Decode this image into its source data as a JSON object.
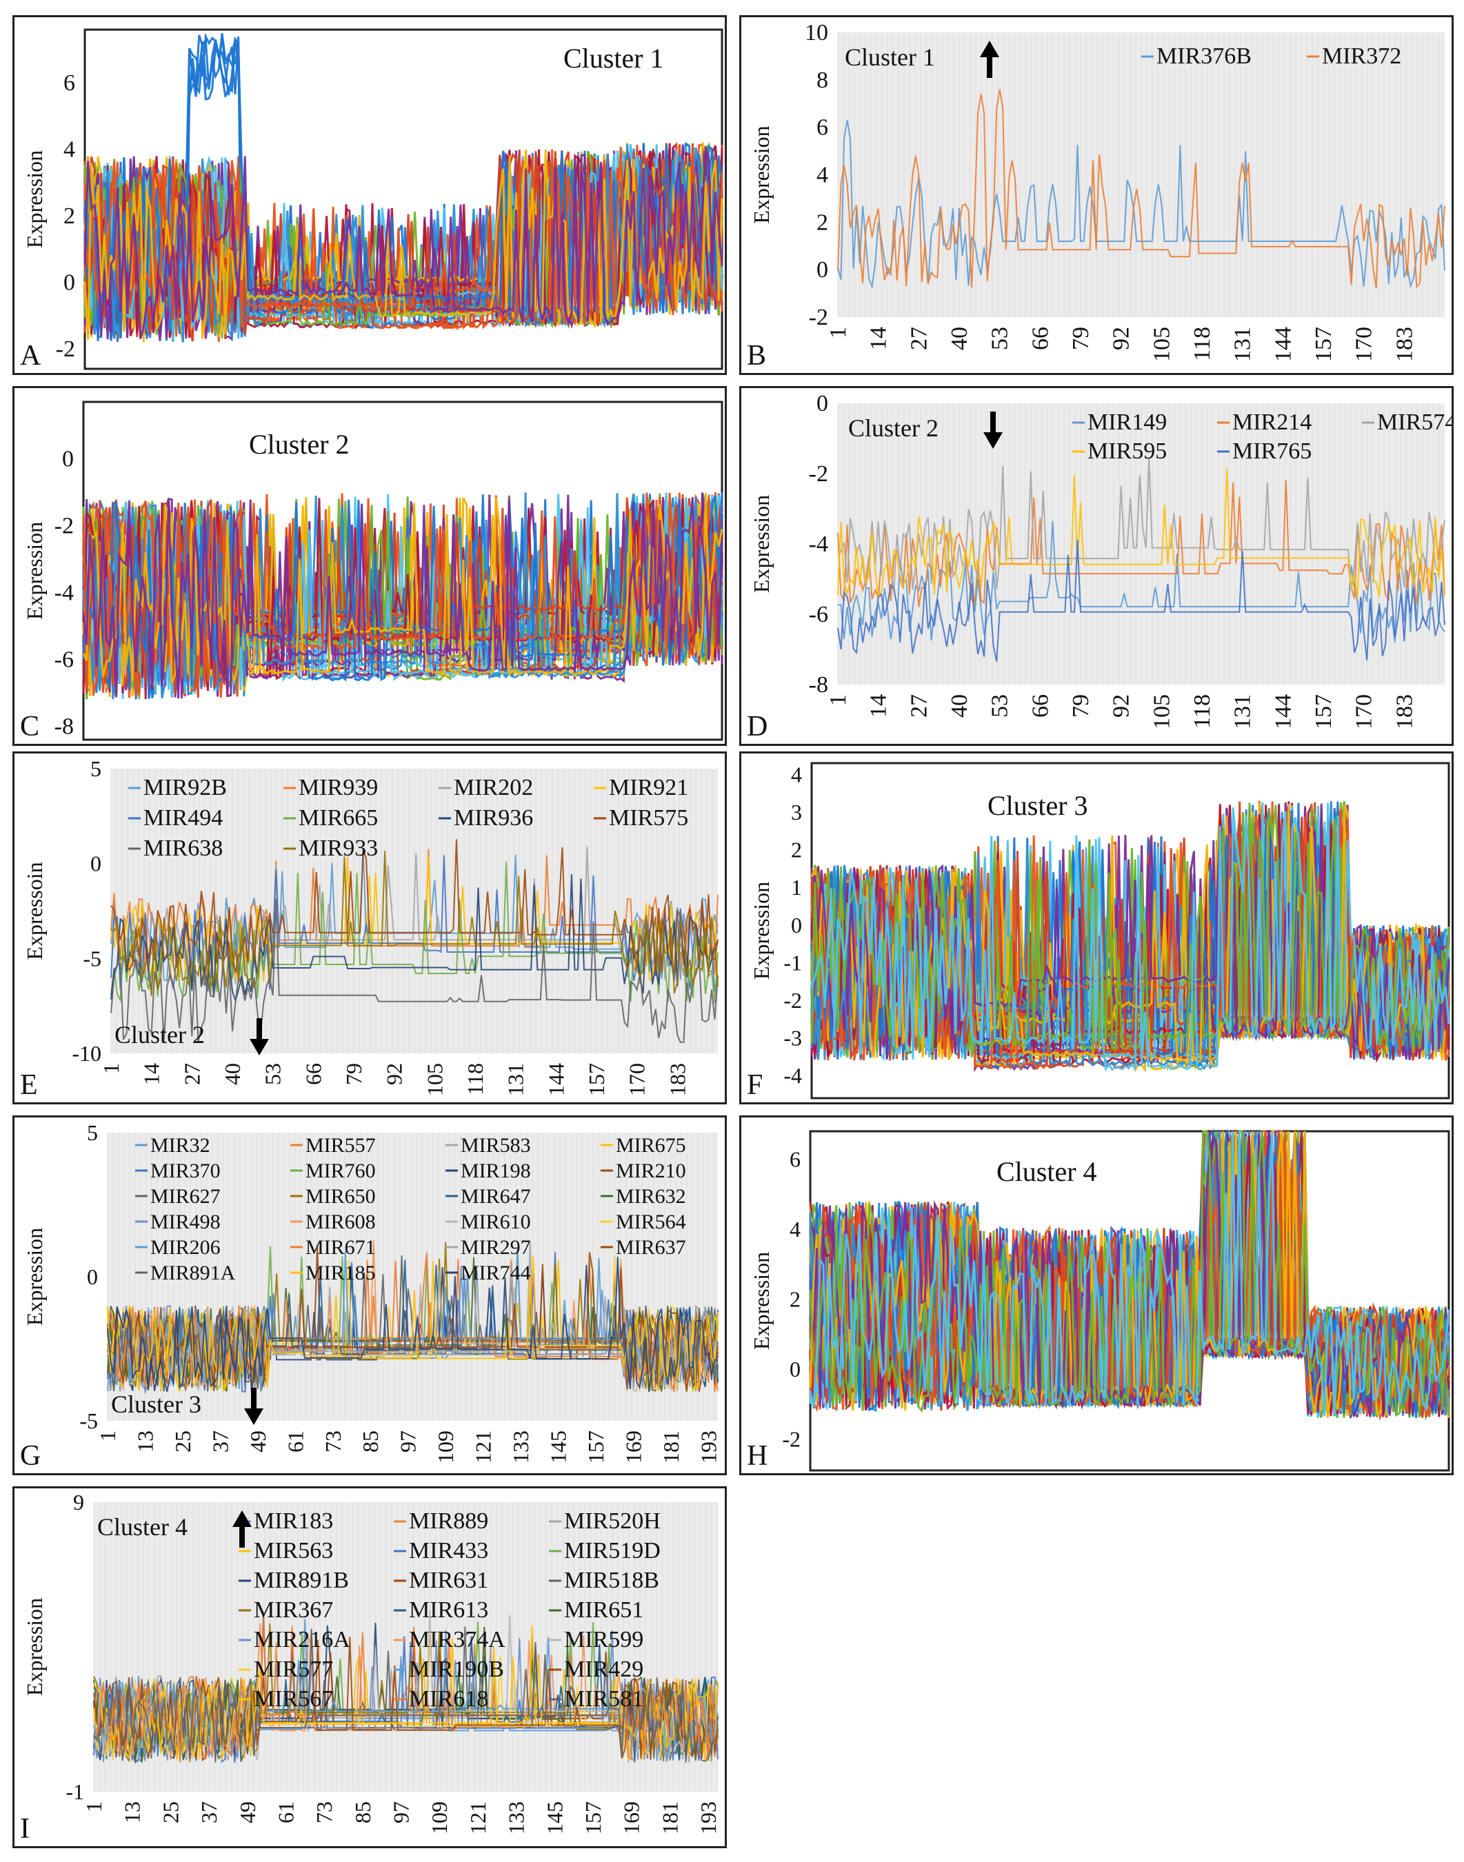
{
  "figure": {
    "axis_label": "Expression",
    "axis_label_typo": "Expressoin"
  },
  "chart_data": [
    {
      "panel": "A",
      "type": "line",
      "title": "Cluster 1",
      "ylabel": "Expression",
      "ylim": [
        -2.6,
        7.6
      ],
      "yticks": [
        "6",
        "4",
        "2",
        "0",
        "-2"
      ],
      "series_count": 40,
      "x_count": 196,
      "description_palette": [
        "#1f77d4",
        "#e8541e",
        "#f0b400",
        "#7a2f9a",
        "#6fb52c",
        "#4fc3f0",
        "#b0173d",
        "#2c8fd8",
        "#d8421c"
      ],
      "regimes": [
        {
          "x": [
            1,
            50
          ],
          "mean": 1.0,
          "amp": 2.8
        },
        {
          "x": [
            51,
            127
          ],
          "mean": -0.6,
          "amp": 1.2,
          "flat": true
        },
        {
          "x": [
            128,
            164
          ],
          "mean": 0.0,
          "amp": 2.5,
          "spiky": true
        },
        {
          "x": [
            165,
            196
          ],
          "mean": 1.6,
          "amp": 2.6
        }
      ],
      "highlight": {
        "x": [
          33,
          48
        ],
        "peak": 7.5
      }
    },
    {
      "panel": "B",
      "type": "line",
      "title": "Cluster 1",
      "arrow": "up",
      "ylabel": "Expression",
      "ylim": [
        -2,
        10
      ],
      "yticks": [
        "10",
        "8",
        "6",
        "4",
        "2",
        "0",
        "-2"
      ],
      "xticks": [
        "1",
        "14",
        "27",
        "40",
        "53",
        "66",
        "79",
        "92",
        "105",
        "118",
        "131",
        "144",
        "157",
        "170",
        "183"
      ],
      "series": [
        {
          "name": "MIR376B",
          "color": "#5b9bd5",
          "peaks": [
            [
              4,
              6.3
            ],
            [
              27,
              3.9
            ],
            [
              52,
              3.2
            ],
            [
              63,
              3.5
            ],
            [
              70,
              3.6
            ],
            [
              82,
              3.5
            ],
            [
              95,
              3.4
            ],
            [
              104,
              3.6
            ],
            [
              163,
              2.7
            ],
            [
              190,
              1.8
            ]
          ]
        },
        {
          "name": "MIR372",
          "color": "#ed7d31",
          "peaks": [
            [
              3,
              4.4
            ],
            [
              26,
              4.8
            ],
            [
              41,
              2.7
            ],
            [
              47,
              7.4
            ],
            [
              53,
              7.6
            ],
            [
              57,
              4.6
            ],
            [
              86,
              3.5
            ],
            [
              97,
              3.4
            ],
            [
              131,
              4.5
            ]
          ]
        }
      ]
    },
    {
      "panel": "C",
      "type": "line",
      "title": "Cluster 2",
      "ylabel": "Expression",
      "ylim": [
        -8.4,
        1.7
      ],
      "yticks": [
        "0",
        "-2",
        "-4",
        "-6",
        "-8"
      ],
      "series_count": 40,
      "x_count": 196,
      "regimes": [
        {
          "x": [
            1,
            50
          ],
          "mean": -4.2,
          "amp": 3.0
        },
        {
          "x": [
            51,
            166
          ],
          "mean": -5.5,
          "amp": 1.8,
          "flat": true
        },
        {
          "x": [
            167,
            196
          ],
          "mean": -3.6,
          "amp": 2.6
        }
      ]
    },
    {
      "panel": "D",
      "type": "line",
      "title": "Cluster 2",
      "arrow": "down",
      "ylabel": "Expression",
      "ylim": [
        -8,
        0
      ],
      "yticks": [
        "0",
        "-2",
        "-4",
        "-6",
        "-8"
      ],
      "xticks": [
        "1",
        "14",
        "27",
        "40",
        "53",
        "66",
        "79",
        "92",
        "105",
        "118",
        "131",
        "144",
        "157",
        "170",
        "183"
      ],
      "series": [
        {
          "name": "MIR149",
          "color": "#5b9bd5",
          "level": -5.6
        },
        {
          "name": "MIR214",
          "color": "#ed7d31",
          "level": -4.6
        },
        {
          "name": "MIR574",
          "color": "#a5a5a5",
          "level": -4.2
        },
        {
          "name": "MIR595",
          "color": "#ffc000",
          "level": -4.4
        },
        {
          "name": "MIR765",
          "color": "#4472c4",
          "level": -6.2
        }
      ]
    },
    {
      "panel": "E",
      "type": "line",
      "title": "Cluster 2",
      "arrow": "down",
      "ylabel": "Expressoin",
      "ylim": [
        -10,
        5
      ],
      "yticks": [
        "5",
        "0",
        "-5",
        "-10"
      ],
      "xticks": [
        "1",
        "14",
        "27",
        "40",
        "53",
        "66",
        "79",
        "92",
        "105",
        "118",
        "131",
        "144",
        "157",
        "170",
        "183"
      ],
      "series": [
        {
          "name": "MIR92B",
          "color": "#5b9bd5",
          "level": -4.0
        },
        {
          "name": "MIR939",
          "color": "#ed7d31",
          "level": -3.8
        },
        {
          "name": "MIR202",
          "color": "#a5a5a5",
          "level": -4.4
        },
        {
          "name": "MIR921",
          "color": "#ffc000",
          "level": -4.2
        },
        {
          "name": "MIR494",
          "color": "#4472c4",
          "level": -4.6
        },
        {
          "name": "MIR665",
          "color": "#70ad47",
          "level": -5.2
        },
        {
          "name": "MIR936",
          "color": "#264478",
          "level": -5.0
        },
        {
          "name": "MIR575",
          "color": "#9e480e",
          "level": -3.6
        },
        {
          "name": "MIR638",
          "color": "#636363",
          "level": -7.2
        },
        {
          "name": "MIR933",
          "color": "#997300",
          "level": -4.8
        }
      ]
    },
    {
      "panel": "F",
      "type": "line",
      "title": "Cluster 3",
      "ylabel": "Expression",
      "ylim": [
        -4.6,
        4.3
      ],
      "yticks": [
        "4",
        "3",
        "2",
        "1",
        "0",
        "-1",
        "-2",
        "-3",
        "-4"
      ],
      "series_count": 60,
      "x_count": 196,
      "regimes": [
        {
          "x": [
            1,
            50
          ],
          "mean": -1.0,
          "amp": 2.6
        },
        {
          "x": [
            51,
            125
          ],
          "mean": -2.6,
          "amp": 2.0,
          "flat": true
        },
        {
          "x": [
            126,
            165
          ],
          "mean": -1.5,
          "amp": 3.0,
          "spiky": true
        },
        {
          "x": [
            166,
            196
          ],
          "mean": -1.8,
          "amp": 1.8
        }
      ]
    },
    {
      "panel": "G",
      "type": "line",
      "title": "Cluster 3",
      "arrow": "down",
      "ylabel": "Expression",
      "ylim": [
        -5,
        5
      ],
      "yticks": [
        "5",
        "0",
        "-5"
      ],
      "xticks": [
        "1",
        "13",
        "25",
        "37",
        "49",
        "61",
        "73",
        "85",
        "97",
        "109",
        "121",
        "133",
        "145",
        "157",
        "169",
        "181",
        "193"
      ],
      "series": [
        {
          "name": "MIR32",
          "color": "#5b9bd5"
        },
        {
          "name": "MIR557",
          "color": "#ed7d31"
        },
        {
          "name": "MIR583",
          "color": "#a5a5a5"
        },
        {
          "name": "MIR675",
          "color": "#ffc000"
        },
        {
          "name": "MIR370",
          "color": "#4472c4"
        },
        {
          "name": "MIR760",
          "color": "#70ad47"
        },
        {
          "name": "MIR198",
          "color": "#264478"
        },
        {
          "name": "MIR210",
          "color": "#9e480e"
        },
        {
          "name": "MIR627",
          "color": "#636363"
        },
        {
          "name": "MIR650",
          "color": "#997300"
        },
        {
          "name": "MIR647",
          "color": "#255e91"
        },
        {
          "name": "MIR632",
          "color": "#43682b"
        },
        {
          "name": "MIR498",
          "color": "#698ed0"
        },
        {
          "name": "MIR608",
          "color": "#f1975a"
        },
        {
          "name": "MIR610",
          "color": "#b7b7b7"
        },
        {
          "name": "MIR564",
          "color": "#ffcd33"
        },
        {
          "name": "MIR206",
          "color": "#5b9bd5"
        },
        {
          "name": "MIR671",
          "color": "#ed7d31"
        },
        {
          "name": "MIR297",
          "color": "#a5a5a5"
        },
        {
          "name": "MIR637",
          "color": "#9e480e"
        },
        {
          "name": "MIR891A",
          "color": "#636363"
        },
        {
          "name": "MIR185",
          "color": "#ffc000"
        },
        {
          "name": "MIR744",
          "color": "#264478"
        }
      ]
    },
    {
      "panel": "H",
      "type": "line",
      "title": "Cluster 4",
      "ylabel": "Expression",
      "ylim": [
        -2.9,
        6.8
      ],
      "yticks": [
        "6",
        "4",
        "2",
        "0",
        "-2"
      ],
      "series_count": 60,
      "x_count": 196,
      "regimes": [
        {
          "x": [
            1,
            52
          ],
          "mean": 1.8,
          "amp": 3.0
        },
        {
          "x": [
            53,
            120
          ],
          "mean": 0.2,
          "amp": 2.4,
          "spiky": true
        },
        {
          "x": [
            121,
            152
          ],
          "mean": 2.0,
          "amp": 3.4,
          "spiky": true
        },
        {
          "x": [
            153,
            196
          ],
          "mean": 0.2,
          "amp": 1.6
        }
      ]
    },
    {
      "panel": "I",
      "type": "line",
      "title": "Cluster 4",
      "arrow": "up",
      "ylabel": "Expression",
      "ylim": [
        -1,
        9
      ],
      "yticks": [
        "9",
        "-1"
      ],
      "xticks": [
        "1",
        "13",
        "25",
        "37",
        "49",
        "61",
        "73",
        "85",
        "97",
        "109",
        "121",
        "133",
        "145",
        "157",
        "169",
        "181",
        "193"
      ],
      "series": [
        {
          "name": "MIR183",
          "color": "#5b9bd5"
        },
        {
          "name": "MIR889",
          "color": "#ed7d31"
        },
        {
          "name": "MIR520H",
          "color": "#a5a5a5"
        },
        {
          "name": "MIR563",
          "color": "#ffc000"
        },
        {
          "name": "MIR433",
          "color": "#4472c4"
        },
        {
          "name": "MIR519D",
          "color": "#70ad47"
        },
        {
          "name": "MIR891B",
          "color": "#264478"
        },
        {
          "name": "MIR631",
          "color": "#9e480e"
        },
        {
          "name": "MIR518B",
          "color": "#636363"
        },
        {
          "name": "MIR367",
          "color": "#997300"
        },
        {
          "name": "MIR613",
          "color": "#255e91"
        },
        {
          "name": "MIR651",
          "color": "#43682b"
        },
        {
          "name": "MIR216A",
          "color": "#698ed0"
        },
        {
          "name": "MIR374A",
          "color": "#f1975a"
        },
        {
          "name": "MIR599",
          "color": "#b7b7b7"
        },
        {
          "name": "MIR577",
          "color": "#ffcd33"
        },
        {
          "name": "MIR190B",
          "color": "#5b9bd5"
        },
        {
          "name": "MIR429",
          "color": "#9e480e"
        },
        {
          "name": "MIR567",
          "color": "#ffc000"
        },
        {
          "name": "MIR618",
          "color": "#ed7d31"
        },
        {
          "name": "MIR581",
          "color": "#636363"
        }
      ]
    }
  ]
}
